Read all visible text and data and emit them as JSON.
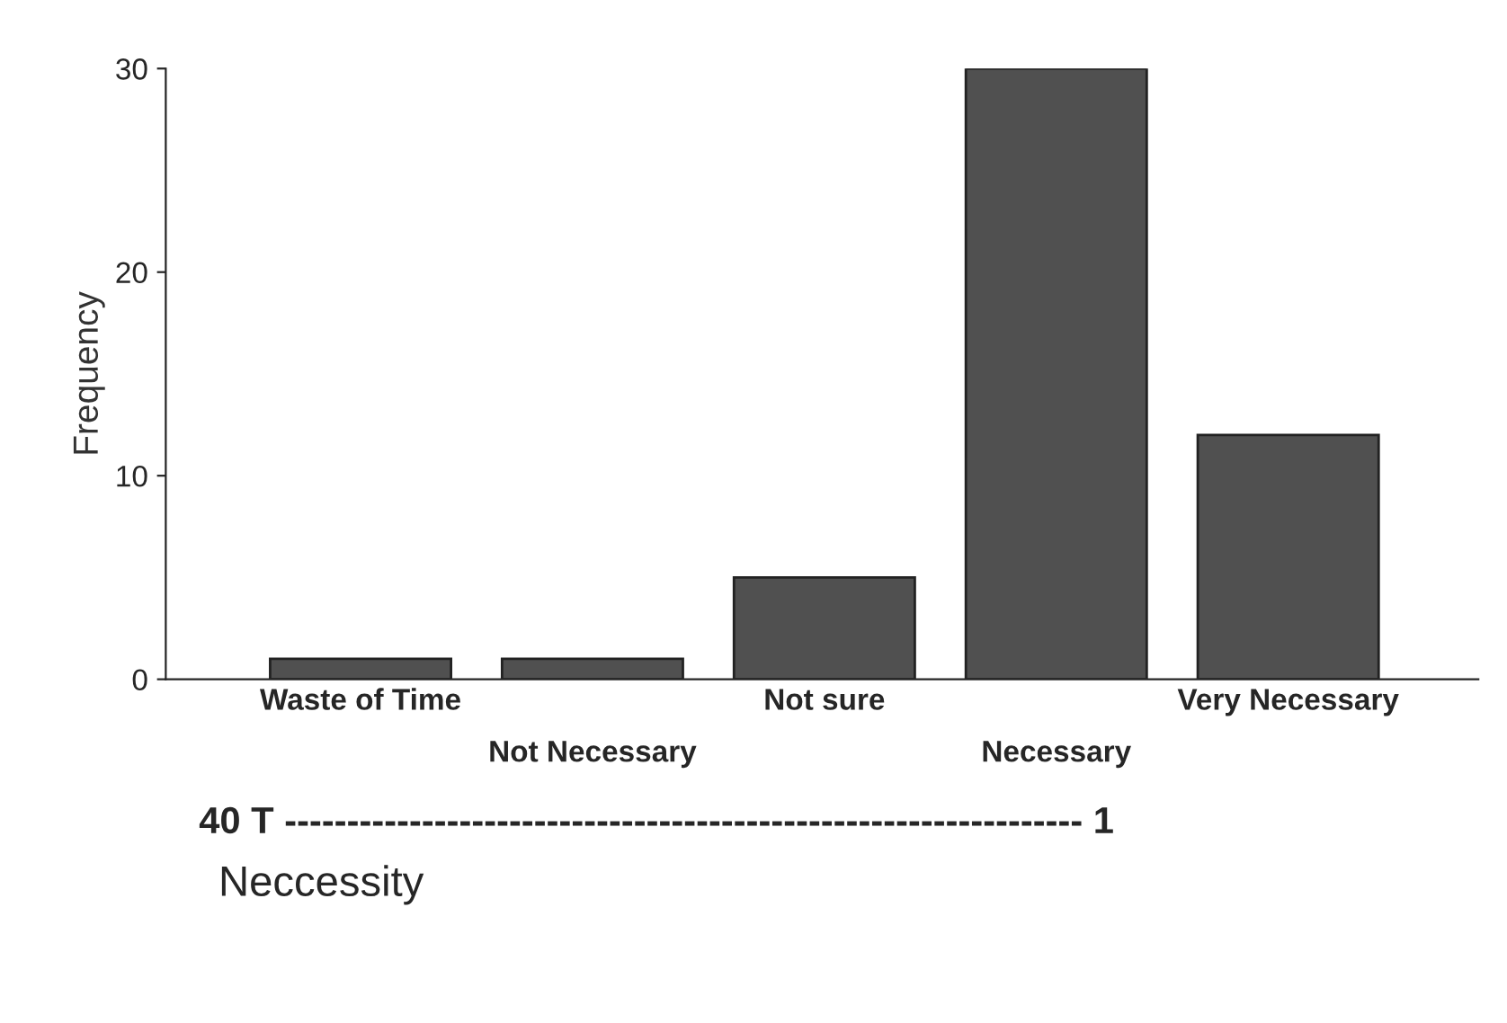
{
  "chart_data": {
    "type": "bar",
    "ylabel": "Frequency",
    "categories": [
      "Waste of Time",
      "Not Necessary",
      "Not sure",
      "Necessary",
      "Very Necessary"
    ],
    "values": [
      1,
      1,
      5,
      30,
      12
    ],
    "color": "#505050",
    "ylim": [
      0,
      30
    ],
    "yticks": [
      0,
      10,
      20,
      30
    ],
    "grid": false,
    "legend": false,
    "annotations": [
      "40 T ---------------------------------------------------------------- 1",
      "Neccessity"
    ]
  }
}
